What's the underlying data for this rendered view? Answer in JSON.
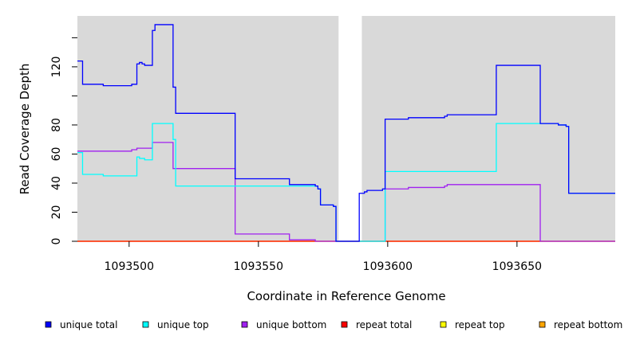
{
  "chart_data": {
    "type": "line",
    "xlabel": "Coordinate in Reference Genome",
    "ylabel": "Read Coverage Depth",
    "xlim": [
      1093480,
      1093688
    ],
    "ylim": [
      0,
      155
    ],
    "x_ticks": [
      1093500,
      1093550,
      1093600,
      1093650
    ],
    "y_ticks": [
      0,
      20,
      40,
      60,
      80,
      100,
      120,
      140
    ],
    "y_tick_labels": [
      "0",
      "20",
      "40",
      "60",
      "80",
      "",
      "120",
      ""
    ],
    "background_color": "#d9d9d9",
    "gap_region": [
      1093581,
      1093590
    ],
    "legend_position": "bottom",
    "series": [
      {
        "name": "unique total",
        "color": "#0000ff",
        "points": [
          [
            1093480,
            124
          ],
          [
            1093482,
            124
          ],
          [
            1093482,
            108
          ],
          [
            1093490,
            108
          ],
          [
            1093490,
            107
          ],
          [
            1093501,
            107
          ],
          [
            1093501,
            108
          ],
          [
            1093503,
            108
          ],
          [
            1093503,
            122
          ],
          [
            1093504,
            122
          ],
          [
            1093504,
            123
          ],
          [
            1093505,
            123
          ],
          [
            1093505,
            122
          ],
          [
            1093506,
            122
          ],
          [
            1093506,
            121
          ],
          [
            1093509,
            121
          ],
          [
            1093509,
            145
          ],
          [
            1093510,
            145
          ],
          [
            1093510,
            149
          ],
          [
            1093517,
            149
          ],
          [
            1093517,
            106
          ],
          [
            1093518,
            106
          ],
          [
            1093518,
            88
          ],
          [
            1093541,
            88
          ],
          [
            1093541,
            43
          ],
          [
            1093562,
            43
          ],
          [
            1093562,
            39
          ],
          [
            1093572,
            39
          ],
          [
            1093572,
            38
          ],
          [
            1093573,
            38
          ],
          [
            1093573,
            36
          ],
          [
            1093574,
            36
          ],
          [
            1093574,
            25
          ],
          [
            1093579,
            25
          ],
          [
            1093579,
            24
          ],
          [
            1093580,
            24
          ],
          [
            1093580,
            0
          ],
          [
            1093589,
            0
          ],
          [
            1093589,
            33
          ],
          [
            1093591,
            33
          ],
          [
            1093591,
            34
          ],
          [
            1093592,
            34
          ],
          [
            1093592,
            35
          ],
          [
            1093598,
            35
          ],
          [
            1093598,
            36
          ],
          [
            1093599,
            36
          ],
          [
            1093599,
            84
          ],
          [
            1093608,
            84
          ],
          [
            1093608,
            85
          ],
          [
            1093622,
            85
          ],
          [
            1093622,
            86
          ],
          [
            1093623,
            86
          ],
          [
            1093623,
            87
          ],
          [
            1093642,
            87
          ],
          [
            1093642,
            121
          ],
          [
            1093659,
            121
          ],
          [
            1093659,
            81
          ],
          [
            1093666,
            81
          ],
          [
            1093666,
            80
          ],
          [
            1093669,
            80
          ],
          [
            1093669,
            79
          ],
          [
            1093670,
            79
          ],
          [
            1093670,
            33
          ],
          [
            1093688,
            33
          ]
        ]
      },
      {
        "name": "unique top",
        "color": "#00ffff",
        "points": [
          [
            1093480,
            61
          ],
          [
            1093482,
            61
          ],
          [
            1093482,
            46
          ],
          [
            1093490,
            46
          ],
          [
            1093490,
            45
          ],
          [
            1093503,
            45
          ],
          [
            1093503,
            58
          ],
          [
            1093504,
            58
          ],
          [
            1093504,
            57
          ],
          [
            1093506,
            57
          ],
          [
            1093506,
            56
          ],
          [
            1093509,
            56
          ],
          [
            1093509,
            81
          ],
          [
            1093517,
            81
          ],
          [
            1093517,
            70
          ],
          [
            1093518,
            70
          ],
          [
            1093518,
            38
          ],
          [
            1093541,
            38
          ],
          [
            1093541,
            38
          ],
          [
            1093573,
            38
          ],
          [
            1093573,
            36
          ],
          [
            1093574,
            36
          ],
          [
            1093574,
            25
          ],
          [
            1093579,
            25
          ],
          [
            1093579,
            24
          ],
          [
            1093580,
            24
          ],
          [
            1093580,
            0
          ],
          [
            1093599,
            0
          ],
          [
            1093599,
            48
          ],
          [
            1093642,
            48
          ],
          [
            1093642,
            81
          ],
          [
            1093659,
            81
          ],
          [
            1093659,
            81
          ],
          [
            1093666,
            81
          ],
          [
            1093666,
            80
          ],
          [
            1093669,
            80
          ],
          [
            1093669,
            79
          ],
          [
            1093670,
            79
          ],
          [
            1093670,
            33
          ],
          [
            1093688,
            33
          ]
        ]
      },
      {
        "name": "unique bottom",
        "color": "#a020f0",
        "points": [
          [
            1093480,
            62
          ],
          [
            1093501,
            62
          ],
          [
            1093501,
            63
          ],
          [
            1093503,
            63
          ],
          [
            1093503,
            64
          ],
          [
            1093509,
            64
          ],
          [
            1093509,
            68
          ],
          [
            1093517,
            68
          ],
          [
            1093517,
            50
          ],
          [
            1093541,
            50
          ],
          [
            1093541,
            5
          ],
          [
            1093562,
            5
          ],
          [
            1093562,
            1
          ],
          [
            1093572,
            1
          ],
          [
            1093572,
            0
          ],
          [
            1093599,
            0
          ],
          [
            1093599,
            36
          ],
          [
            1093608,
            36
          ],
          [
            1093608,
            37
          ],
          [
            1093622,
            37
          ],
          [
            1093622,
            38
          ],
          [
            1093623,
            38
          ],
          [
            1093623,
            39
          ],
          [
            1093659,
            39
          ],
          [
            1093659,
            0
          ],
          [
            1093688,
            0
          ]
        ]
      },
      {
        "name": "repeat total",
        "color": "#ff0000",
        "points": [
          [
            1093480,
            0
          ],
          [
            1093688,
            0
          ]
        ]
      },
      {
        "name": "repeat top",
        "color": "#ffff00",
        "points": [
          [
            1093480,
            0
          ],
          [
            1093688,
            0
          ]
        ]
      },
      {
        "name": "repeat bottom",
        "color": "#ffa500",
        "points": [
          [
            1093480,
            0
          ],
          [
            1093688,
            0
          ]
        ]
      }
    ]
  }
}
